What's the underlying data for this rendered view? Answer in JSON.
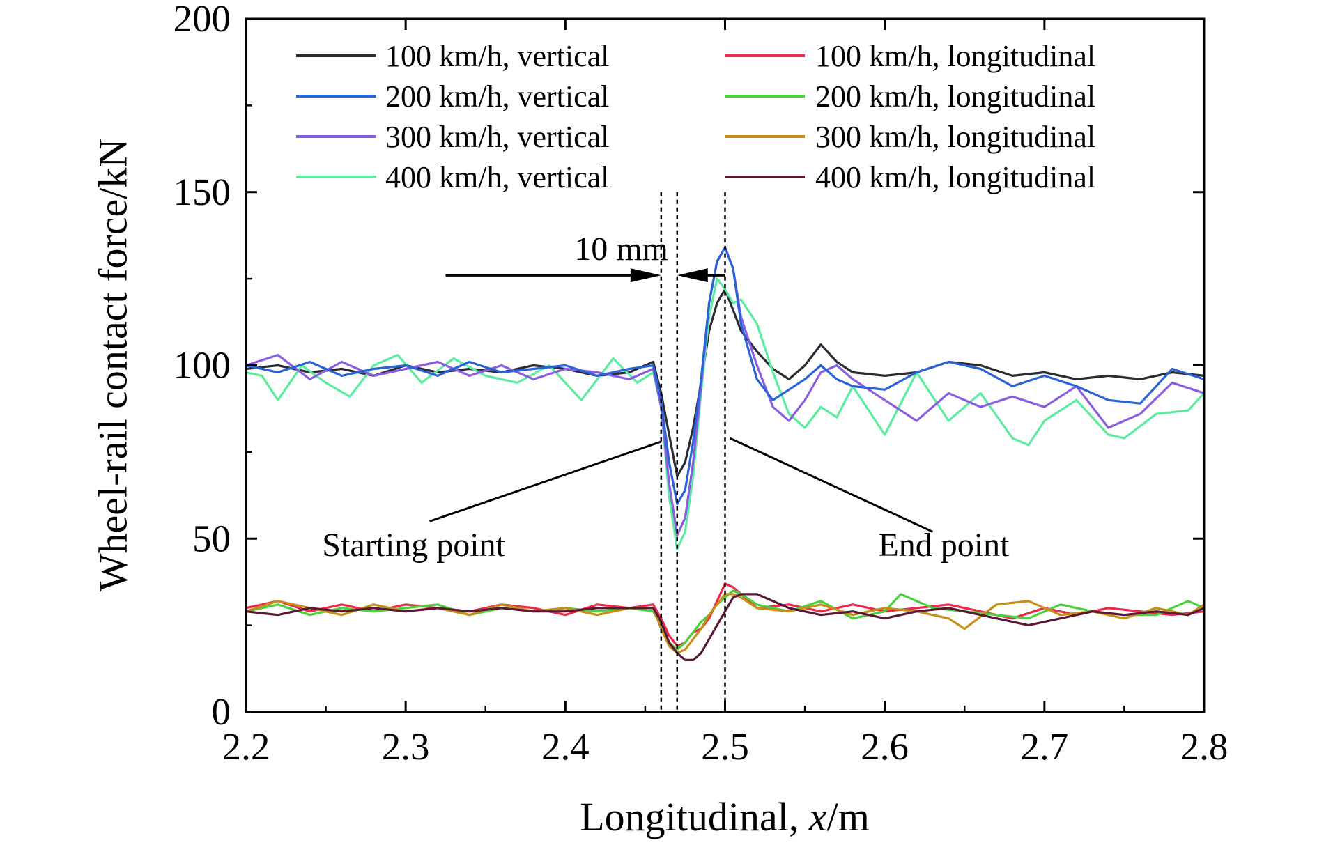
{
  "chart_data": {
    "type": "line",
    "title": "",
    "xlabel": "Longitudinal, ",
    "xlabel_var": "x",
    "xlabel_unit": "/m",
    "ylabel": "Wheel-rail contact force/kN",
    "xlim": [
      2.2,
      2.8
    ],
    "ylim": [
      0,
      200
    ],
    "xticks": [
      "2.2",
      "2.3",
      "2.4",
      "2.5",
      "2.6",
      "2.7",
      "2.8"
    ],
    "yticks": [
      "0",
      "50",
      "100",
      "150",
      "200"
    ],
    "grid": false,
    "legend_position": "top",
    "series": [
      {
        "name": "100 km/h, vertical",
        "color": "#2b2b36",
        "x": [
          2.2,
          2.22,
          2.24,
          2.26,
          2.28,
          2.3,
          2.32,
          2.34,
          2.36,
          2.38,
          2.4,
          2.42,
          2.44,
          2.455,
          2.46,
          2.465,
          2.47,
          2.475,
          2.48,
          2.485,
          2.49,
          2.495,
          2.5,
          2.505,
          2.51,
          2.52,
          2.53,
          2.54,
          2.55,
          2.56,
          2.57,
          2.58,
          2.6,
          2.62,
          2.64,
          2.66,
          2.68,
          2.7,
          2.72,
          2.74,
          2.76,
          2.78,
          2.8
        ],
        "y": [
          99,
          100,
          98,
          99,
          97,
          100,
          98,
          99,
          98,
          100,
          99,
          97,
          98,
          101,
          92,
          80,
          68,
          72,
          82,
          95,
          110,
          118,
          122,
          116,
          110,
          104,
          99,
          96,
          100,
          106,
          101,
          98,
          97,
          98,
          101,
          100,
          97,
          98,
          96,
          97,
          96,
          98,
          97
        ]
      },
      {
        "name": "200 km/h, vertical",
        "color": "#2a63d6",
        "x": [
          2.2,
          2.22,
          2.24,
          2.26,
          2.28,
          2.3,
          2.32,
          2.34,
          2.36,
          2.38,
          2.4,
          2.42,
          2.44,
          2.455,
          2.46,
          2.465,
          2.47,
          2.475,
          2.48,
          2.485,
          2.49,
          2.495,
          2.5,
          2.505,
          2.51,
          2.52,
          2.53,
          2.54,
          2.55,
          2.56,
          2.57,
          2.58,
          2.6,
          2.62,
          2.64,
          2.66,
          2.68,
          2.7,
          2.72,
          2.74,
          2.76,
          2.78,
          2.8
        ],
        "y": [
          100,
          98,
          101,
          97,
          99,
          100,
          97,
          101,
          98,
          99,
          100,
          97,
          99,
          100,
          90,
          72,
          60,
          64,
          78,
          96,
          118,
          130,
          134,
          128,
          112,
          96,
          90,
          93,
          96,
          100,
          96,
          94,
          93,
          98,
          101,
          99,
          94,
          97,
          94,
          90,
          89,
          99,
          96
        ]
      },
      {
        "name": "300 km/h, vertical",
        "color": "#8a5ee0",
        "x": [
          2.2,
          2.22,
          2.24,
          2.26,
          2.28,
          2.3,
          2.32,
          2.34,
          2.36,
          2.38,
          2.4,
          2.42,
          2.44,
          2.455,
          2.46,
          2.465,
          2.47,
          2.475,
          2.48,
          2.485,
          2.49,
          2.495,
          2.5,
          2.505,
          2.51,
          2.52,
          2.53,
          2.54,
          2.55,
          2.56,
          2.57,
          2.58,
          2.6,
          2.62,
          2.64,
          2.66,
          2.68,
          2.7,
          2.72,
          2.74,
          2.76,
          2.78,
          2.8
        ],
        "y": [
          100,
          103,
          96,
          101,
          97,
          99,
          101,
          97,
          100,
          96,
          99,
          98,
          96,
          99,
          88,
          66,
          51,
          56,
          72,
          94,
          118,
          130,
          134,
          128,
          114,
          100,
          88,
          84,
          90,
          98,
          100,
          96,
          90,
          84,
          92,
          88,
          91,
          88,
          94,
          82,
          86,
          95,
          92
        ]
      },
      {
        "name": "400 km/h, vertical",
        "color": "#5ceba0",
        "x": [
          2.2,
          2.21,
          2.22,
          2.235,
          2.25,
          2.265,
          2.28,
          2.295,
          2.31,
          2.33,
          2.35,
          2.37,
          2.39,
          2.41,
          2.43,
          2.445,
          2.455,
          2.46,
          2.465,
          2.47,
          2.475,
          2.48,
          2.485,
          2.49,
          2.495,
          2.5,
          2.505,
          2.51,
          2.52,
          2.53,
          2.54,
          2.55,
          2.56,
          2.57,
          2.58,
          2.6,
          2.62,
          2.64,
          2.66,
          2.68,
          2.69,
          2.7,
          2.72,
          2.74,
          2.75,
          2.77,
          2.79,
          2.8
        ],
        "y": [
          98,
          97,
          90,
          100,
          95,
          91,
          100,
          103,
          95,
          102,
          97,
          95,
          100,
          90,
          102,
          95,
          98,
          88,
          62,
          47,
          52,
          68,
          92,
          114,
          125,
          122,
          118,
          119,
          112,
          98,
          86,
          82,
          88,
          85,
          94,
          80,
          98,
          84,
          92,
          79,
          77,
          84,
          90,
          80,
          79,
          86,
          87,
          92
        ]
      },
      {
        "name": "100 km/h, longitudinal",
        "color": "#ee2a4c",
        "x": [
          2.2,
          2.22,
          2.24,
          2.26,
          2.28,
          2.3,
          2.32,
          2.34,
          2.36,
          2.38,
          2.4,
          2.42,
          2.44,
          2.455,
          2.46,
          2.465,
          2.47,
          2.475,
          2.48,
          2.485,
          2.49,
          2.495,
          2.5,
          2.505,
          2.51,
          2.52,
          2.54,
          2.56,
          2.58,
          2.6,
          2.62,
          2.64,
          2.66,
          2.68,
          2.7,
          2.72,
          2.74,
          2.76,
          2.78,
          2.8
        ],
        "y": [
          30,
          32,
          29,
          31,
          29,
          31,
          30,
          29,
          31,
          30,
          28,
          31,
          30,
          31,
          27,
          22,
          19,
          20,
          23,
          24,
          27,
          32,
          37,
          36,
          34,
          30,
          31,
          29,
          31,
          29,
          30,
          31,
          29,
          27,
          30,
          28,
          30,
          29,
          28,
          29
        ]
      },
      {
        "name": "200 km/h, longitudinal",
        "color": "#4cd03e",
        "x": [
          2.2,
          2.22,
          2.24,
          2.26,
          2.28,
          2.3,
          2.32,
          2.34,
          2.36,
          2.38,
          2.4,
          2.42,
          2.44,
          2.455,
          2.46,
          2.465,
          2.47,
          2.475,
          2.48,
          2.485,
          2.49,
          2.495,
          2.5,
          2.505,
          2.51,
          2.52,
          2.54,
          2.56,
          2.58,
          2.6,
          2.61,
          2.63,
          2.65,
          2.67,
          2.69,
          2.71,
          2.73,
          2.75,
          2.77,
          2.79,
          2.8
        ],
        "y": [
          29,
          31,
          28,
          30,
          29,
          30,
          31,
          28,
          30,
          29,
          30,
          29,
          30,
          29,
          25,
          20,
          18,
          20,
          23,
          26,
          28,
          31,
          33,
          35,
          34,
          31,
          29,
          32,
          27,
          29,
          34,
          30,
          29,
          28,
          27,
          31,
          29,
          28,
          28,
          32,
          30
        ]
      },
      {
        "name": "300 km/h, longitudinal",
        "color": "#c4901a",
        "x": [
          2.2,
          2.22,
          2.24,
          2.26,
          2.28,
          2.3,
          2.32,
          2.34,
          2.36,
          2.38,
          2.4,
          2.42,
          2.44,
          2.455,
          2.46,
          2.465,
          2.47,
          2.475,
          2.48,
          2.485,
          2.49,
          2.495,
          2.5,
          2.505,
          2.51,
          2.52,
          2.54,
          2.56,
          2.58,
          2.6,
          2.62,
          2.64,
          2.65,
          2.67,
          2.69,
          2.71,
          2.73,
          2.75,
          2.77,
          2.79,
          2.8
        ],
        "y": [
          29,
          32,
          30,
          28,
          31,
          29,
          30,
          28,
          31,
          29,
          30,
          28,
          30,
          30,
          24,
          19,
          17,
          18,
          21,
          24,
          28,
          31,
          34,
          34,
          33,
          30,
          29,
          31,
          28,
          30,
          29,
          27,
          24,
          31,
          32,
          28,
          29,
          27,
          30,
          28,
          31
        ]
      },
      {
        "name": "400 km/h, longitudinal",
        "color": "#5a1a36",
        "x": [
          2.2,
          2.22,
          2.24,
          2.26,
          2.28,
          2.3,
          2.32,
          2.34,
          2.36,
          2.38,
          2.4,
          2.42,
          2.44,
          2.455,
          2.46,
          2.465,
          2.47,
          2.475,
          2.48,
          2.485,
          2.49,
          2.495,
          2.5,
          2.505,
          2.51,
          2.52,
          2.54,
          2.56,
          2.58,
          2.6,
          2.62,
          2.64,
          2.66,
          2.68,
          2.69,
          2.71,
          2.73,
          2.75,
          2.77,
          2.79,
          2.8
        ],
        "y": [
          29,
          28,
          30,
          29,
          30,
          29,
          30,
          29,
          30,
          29,
          29,
          30,
          30,
          30,
          26,
          20,
          17,
          15,
          15,
          17,
          21,
          25,
          29,
          33,
          34,
          34,
          30,
          28,
          29,
          27,
          29,
          30,
          28,
          26,
          25,
          27,
          29,
          28,
          29,
          28,
          30
        ]
      }
    ],
    "annotations": {
      "dimension_label": "10 mm",
      "start_label": "Starting point",
      "end_label": "End point",
      "vlines_x": [
        2.46,
        2.47,
        2.5
      ],
      "arrow_y": 126,
      "start_leader": {
        "from": [
          2.315,
          55
        ],
        "to": [
          2.46,
          78
        ]
      },
      "end_leader": {
        "from": [
          2.63,
          52
        ],
        "to": [
          2.503,
          79
        ]
      }
    }
  }
}
